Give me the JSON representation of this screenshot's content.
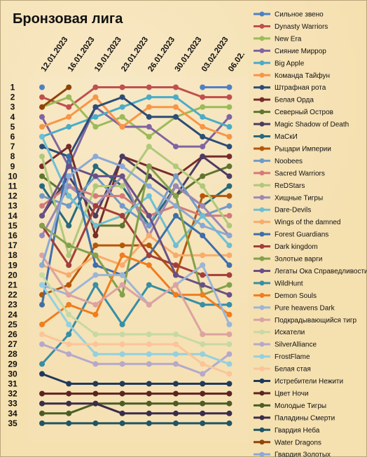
{
  "chart_data": {
    "type": "line",
    "title": "Бронзовая лига",
    "xlabel": "",
    "ylabel": "",
    "x": [
      "12.01.2023",
      "16.01.2023",
      "19.01.2023",
      "23.01.2023",
      "26.01.2023",
      "30.01.2023",
      "03.02.2023",
      "06.02."
    ],
    "y_ticks": [
      1,
      2,
      3,
      4,
      5,
      6,
      7,
      8,
      9,
      10,
      11,
      12,
      13,
      14,
      15,
      16,
      17,
      18,
      19,
      20,
      21,
      22,
      23,
      24,
      25,
      26,
      27,
      28,
      29,
      30,
      31,
      32,
      33,
      34,
      35
    ],
    "ylim": [
      1,
      35
    ],
    "y_inverted": true,
    "grid": false,
    "legend_position": "right",
    "series": [
      {
        "name": "Сильное звено",
        "color": "#4e81c4",
        "values": [
          1,
          null,
          null,
          null,
          null,
          null,
          1,
          1
        ]
      },
      {
        "name": "Dynasty Warriors",
        "color": "#c0504d",
        "values": [
          2,
          3,
          1,
          1,
          1,
          1,
          2,
          2
        ]
      },
      {
        "name": "New Era",
        "color": "#9bbb59",
        "values": [
          3,
          2,
          5,
          4,
          6,
          4,
          3,
          3
        ]
      },
      {
        "name": "Сияние Миррор",
        "color": "#8064a2",
        "values": [
          4,
          9,
          3,
          5,
          5,
          7,
          7,
          4
        ]
      },
      {
        "name": "Big Apple",
        "color": "#4bacc6",
        "values": [
          6,
          5,
          4,
          3,
          2,
          2,
          4,
          5
        ]
      },
      {
        "name": "Команда Тайфун",
        "color": "#f79646",
        "values": [
          5,
          4,
          2,
          5,
          3,
          3,
          5,
          6
        ]
      },
      {
        "name": "Штрафная рота",
        "color": "#2c4d75",
        "values": [
          7,
          8,
          3,
          2,
          4,
          4,
          6,
          7
        ]
      },
      {
        "name": "Белая Орда",
        "color": "#772c2a",
        "values": [
          9,
          7,
          16,
          8,
          9,
          10,
          8,
          8
        ]
      },
      {
        "name": "Северный Остров",
        "color": "#5f7530",
        "values": [
          10,
          12,
          15,
          15,
          10,
          12,
          10,
          9
        ]
      },
      {
        "name": "Magic Shadow of Death",
        "color": "#4d3b62",
        "values": [
          14,
          10,
          14,
          8,
          10,
          12,
          8,
          10
        ]
      },
      {
        "name": "МаСкИ",
        "color": "#276a7c",
        "values": [
          11,
          15,
          9,
          11,
          15,
          11,
          13,
          11
        ]
      },
      {
        "name": "Рыцари Империи",
        "color": "#b65708",
        "values": [
          22,
          21,
          17,
          17,
          17,
          20,
          12,
          12
        ]
      },
      {
        "name": "Noobees",
        "color": "#729aca",
        "values": [
          12,
          13,
          10,
          13,
          15,
          10,
          14,
          13
        ]
      },
      {
        "name": "Sacred Warriors",
        "color": "#d47a78",
        "values": [
          13,
          11,
          12,
          12,
          14,
          13,
          14,
          14
        ]
      },
      {
        "name": "ReDStars",
        "color": "#afc97a",
        "values": [
          8,
          18,
          11,
          11,
          7,
          9,
          11,
          15
        ]
      },
      {
        "name": "Хищные Тигры",
        "color": "#9c88b5",
        "values": [
          16,
          11,
          13,
          10,
          16,
          11,
          13,
          16
        ]
      },
      {
        "name": "Dare-Devils",
        "color": "#6dbfd4",
        "values": [
          6,
          12,
          15,
          14,
          12,
          17,
          14,
          17
        ]
      },
      {
        "name": "Wings of the damned",
        "color": "#f9ab6b",
        "values": [
          19,
          20,
          18,
          19,
          16,
          18,
          18,
          18
        ]
      },
      {
        "name": "Forest Guardians",
        "color": "#3e6fab",
        "values": [
          23,
          8,
          19,
          20,
          18,
          14,
          16,
          19
        ]
      },
      {
        "name": "Dark kingdom",
        "color": "#a33e3b",
        "values": [
          15,
          19,
          13,
          14,
          18,
          19,
          20,
          20
        ]
      },
      {
        "name": "Золотые варги",
        "color": "#83a04b",
        "values": [
          15,
          17,
          18,
          22,
          9,
          12,
          22,
          21
        ]
      },
      {
        "name": "Легаты Ока Справедливости",
        "color": "#6a5086",
        "values": [
          14,
          9,
          10,
          10,
          14,
          20,
          21,
          22
        ]
      },
      {
        "name": "WildHunt",
        "color": "#388ea6",
        "values": [
          29,
          26,
          21,
          25,
          21,
          22,
          23,
          23
        ]
      },
      {
        "name": "Demon Souls",
        "color": "#f07d1f",
        "values": [
          25,
          23,
          24,
          18,
          19,
          22,
          22,
          24
        ]
      },
      {
        "name": "Pure heavens Dark",
        "color": "#9bb5d8",
        "values": [
          21,
          22,
          20,
          20,
          23,
          21,
          19,
          25
        ]
      },
      {
        "name": "Подкрадывающийся тигр",
        "color": "#dca3a2",
        "values": [
          18,
          22,
          23,
          21,
          23,
          21,
          26,
          26
        ]
      },
      {
        "name": "Искатели",
        "color": "#c7d9a3",
        "values": [
          20,
          24,
          26,
          26,
          26,
          26,
          27,
          27
        ]
      },
      {
        "name": "SilverAlliance",
        "color": "#b6a8cb",
        "values": [
          27,
          28,
          29,
          29,
          29,
          29,
          30,
          28
        ]
      },
      {
        "name": "FrostFlame",
        "color": "#93d0e0",
        "values": [
          21,
          25,
          28,
          28,
          28,
          28,
          28,
          29
        ]
      },
      {
        "name": "Белая стая",
        "color": "#fbc599",
        "values": [
          26,
          27,
          27,
          27,
          27,
          27,
          29,
          30
        ]
      },
      {
        "name": "Истребители Нежити",
        "color": "#1f3a5c",
        "values": [
          30,
          31,
          31,
          31,
          31,
          31,
          31,
          31
        ]
      },
      {
        "name": "Цвет Ночи",
        "color": "#5e2321",
        "values": [
          32,
          32,
          32,
          32,
          32,
          32,
          32,
          32
        ]
      },
      {
        "name": "Молодые Тигры",
        "color": "#4a5e25",
        "values": [
          34,
          34,
          33,
          33,
          33,
          33,
          33,
          33
        ]
      },
      {
        "name": "Паладины Смерти",
        "color": "#3a2c4b",
        "values": [
          33,
          33,
          33,
          34,
          34,
          34,
          34,
          34
        ]
      },
      {
        "name": "Гвардия Неба",
        "color": "#1f5565",
        "values": [
          35,
          35,
          35,
          35,
          35,
          35,
          35,
          35
        ]
      },
      {
        "name": "Water Dragons",
        "color": "#8f4407",
        "values": [
          3,
          1,
          null,
          null,
          null,
          null,
          null,
          null
        ]
      },
      {
        "name": "Гвардия Золотых",
        "color": "#8aa9d4",
        "values": [
          19,
          10,
          8,
          9,
          11,
          13,
          15,
          16
        ]
      }
    ]
  }
}
